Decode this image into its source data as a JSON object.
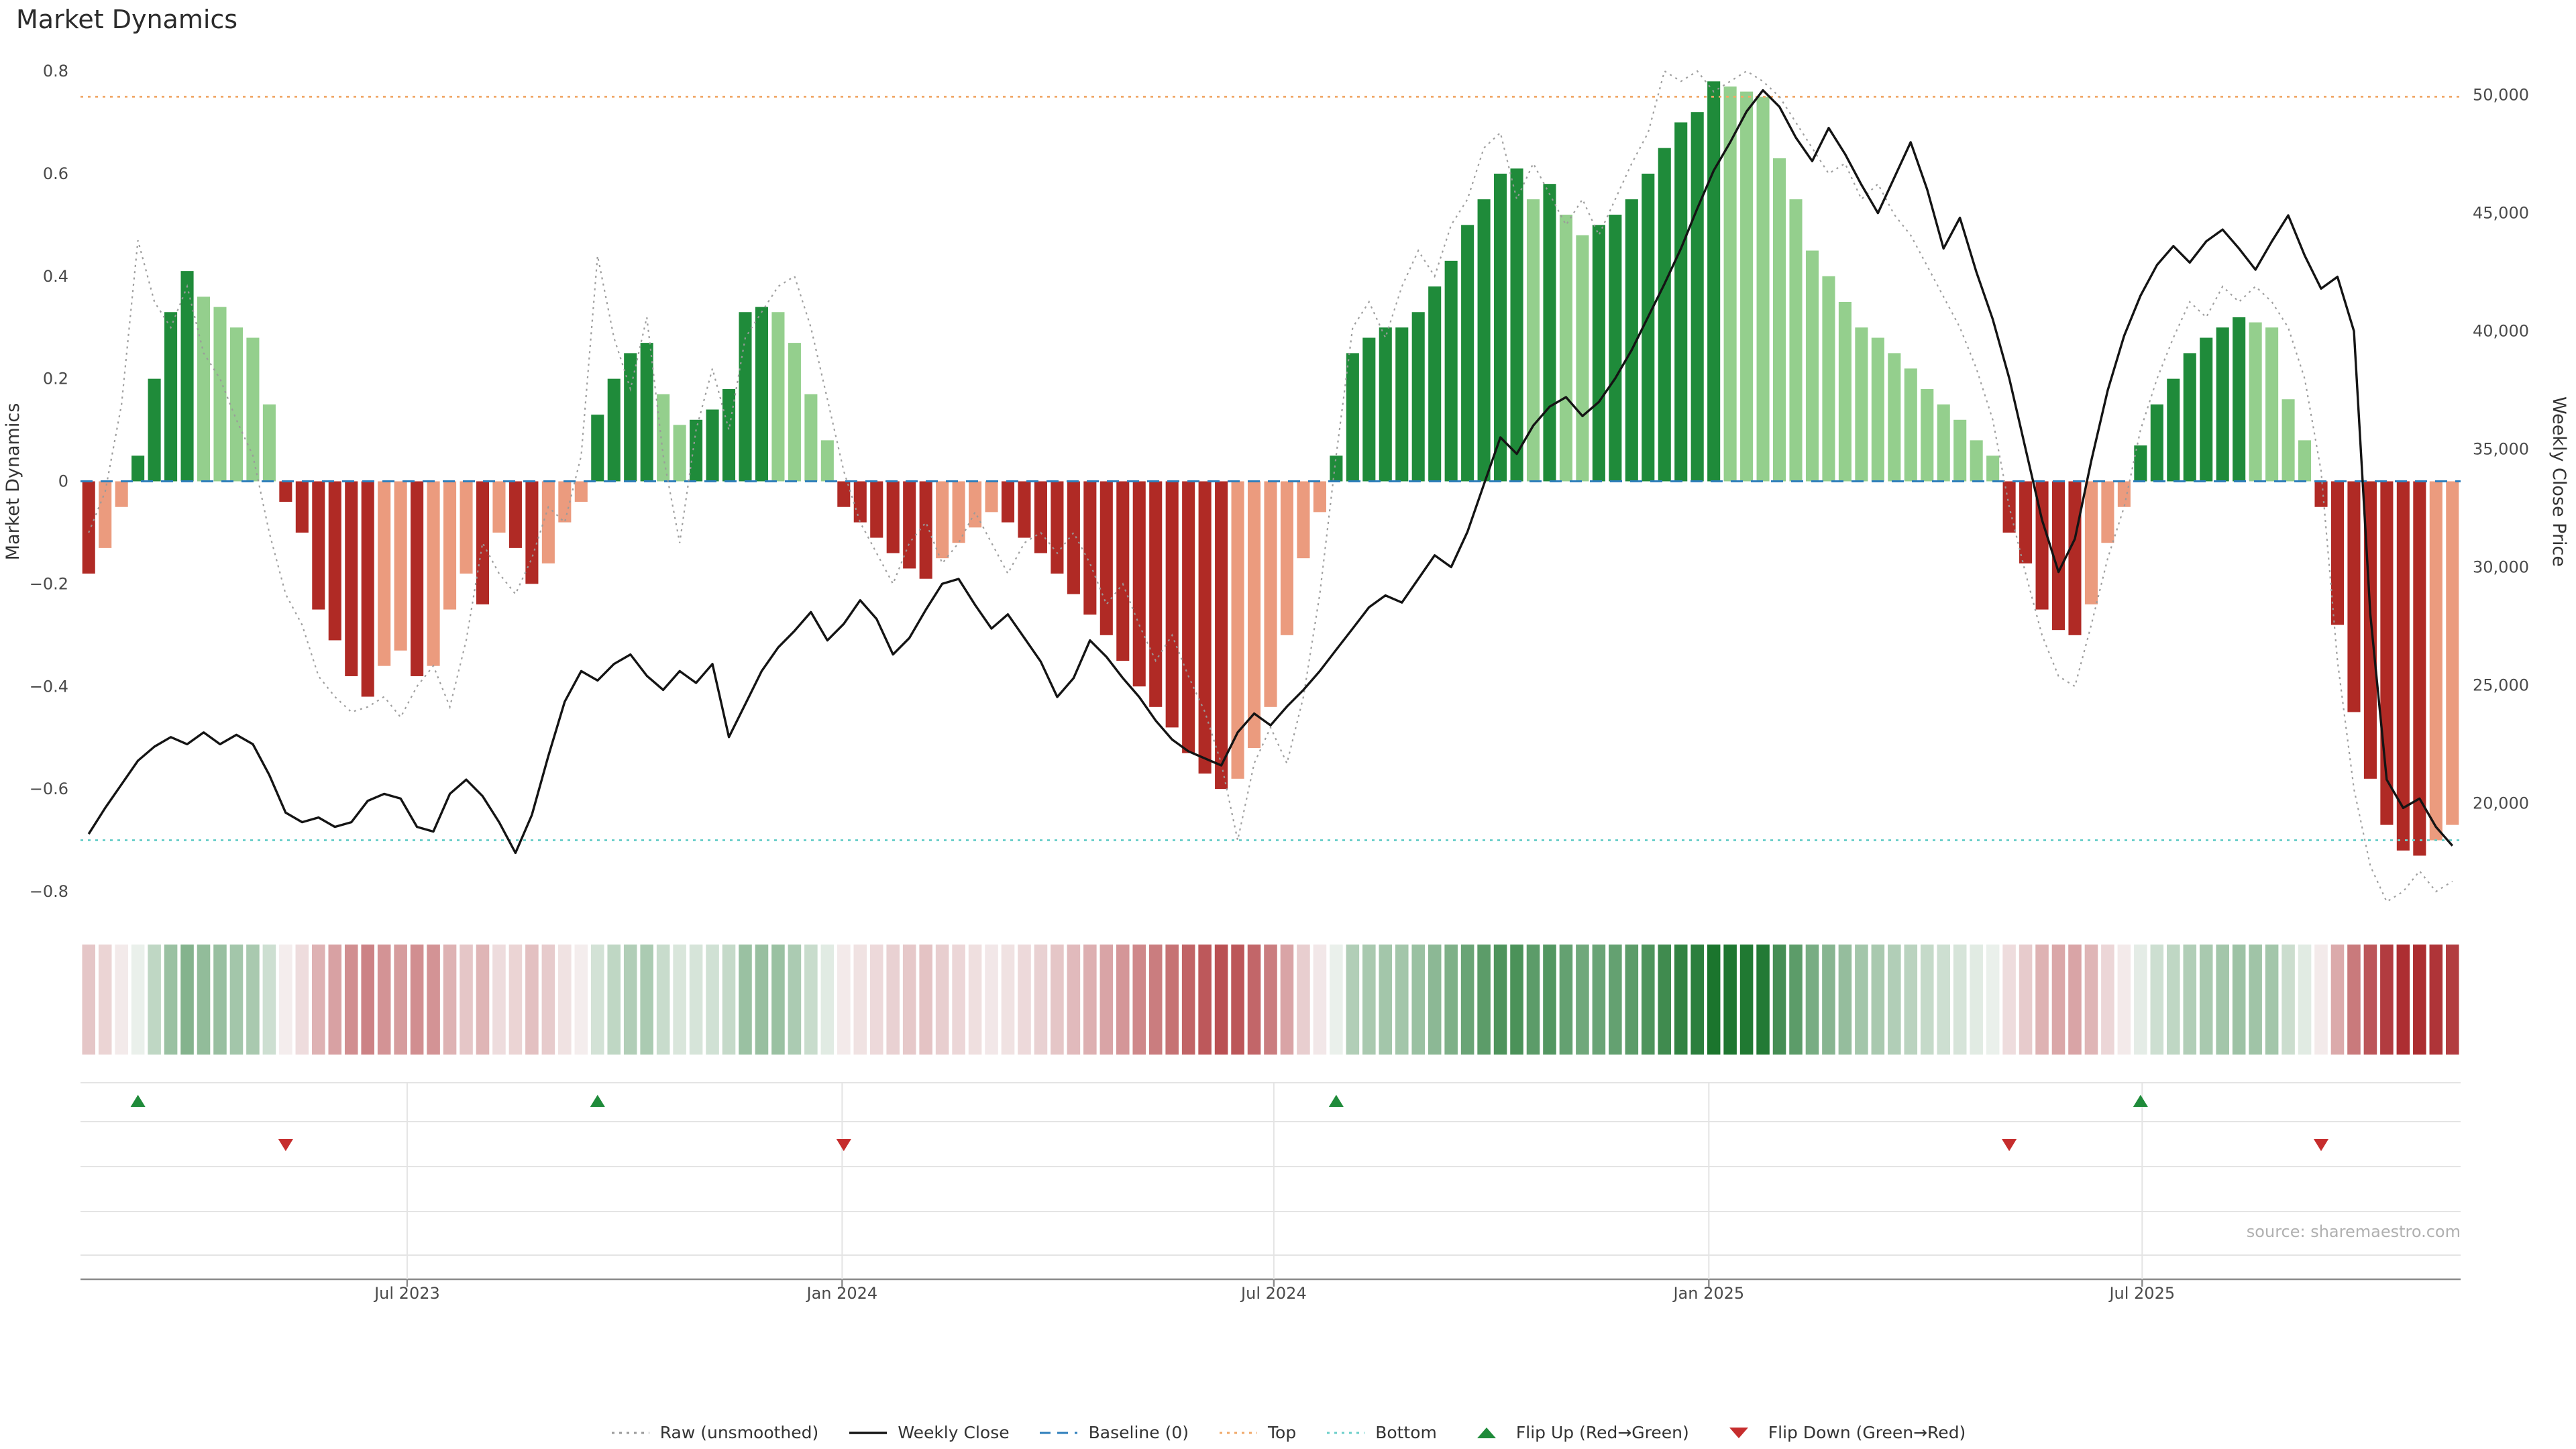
{
  "title": "Market Dynamics",
  "source": "source: sharemaestro.com",
  "chart_data": {
    "type": "combo: weekly oscillator bars + raw dotted line + price line + heatmap strip + flip markers",
    "x": {
      "unit": "week",
      "count": 145,
      "range_note": "weekly points from early 2023 to late 2025",
      "tick_labels": [
        "Jul 2023",
        "Jan 2024",
        "Jul 2024",
        "Jan 2025",
        "Jul 2025"
      ],
      "tick_weeks": [
        19.4,
        45.9,
        72.2,
        98.7,
        125.1
      ]
    },
    "axes": {
      "left_label": "Market Dynamics",
      "right_label": "Weekly Close Price",
      "left_ticks": [
        0.8,
        0.6,
        0.4,
        0.2,
        0,
        -0.2,
        -0.4,
        -0.6,
        -0.8
      ],
      "right_ticks": [
        50000,
        45000,
        40000,
        35000,
        30000,
        25000,
        20000
      ],
      "ylim_left": [
        -0.85,
        0.85
      ],
      "ylim_right": [
        17500,
        51500
      ],
      "grid": "horizontal row-lines in lower marker panel only"
    },
    "refs": {
      "baseline": 0,
      "top": 0.75,
      "bottom": -0.7
    },
    "series": {
      "dynamics": [
        -0.18,
        -0.13,
        -0.05,
        0.05,
        0.2,
        0.33,
        0.41,
        0.36,
        0.34,
        0.3,
        0.28,
        0.15,
        -0.04,
        -0.1,
        -0.25,
        -0.31,
        -0.38,
        -0.42,
        -0.36,
        -0.33,
        -0.38,
        -0.36,
        -0.25,
        -0.18,
        -0.24,
        -0.1,
        -0.13,
        -0.2,
        -0.16,
        -0.08,
        -0.04,
        0.13,
        0.2,
        0.25,
        0.27,
        0.17,
        0.11,
        0.12,
        0.14,
        0.18,
        0.33,
        0.34,
        0.33,
        0.27,
        0.17,
        0.08,
        -0.05,
        -0.08,
        -0.11,
        -0.14,
        -0.17,
        -0.19,
        -0.15,
        -0.12,
        -0.09,
        -0.06,
        -0.08,
        -0.11,
        -0.14,
        -0.18,
        -0.22,
        -0.26,
        -0.3,
        -0.35,
        -0.4,
        -0.44,
        -0.48,
        -0.53,
        -0.57,
        -0.6,
        -0.58,
        -0.52,
        -0.44,
        -0.3,
        -0.15,
        -0.06,
        0.05,
        0.25,
        0.28,
        0.3,
        0.3,
        0.33,
        0.38,
        0.43,
        0.5,
        0.55,
        0.6,
        0.61,
        0.55,
        0.58,
        0.52,
        0.48,
        0.5,
        0.52,
        0.55,
        0.6,
        0.65,
        0.7,
        0.72,
        0.78,
        0.77,
        0.76,
        0.75,
        0.63,
        0.55,
        0.45,
        0.4,
        0.35,
        0.3,
        0.28,
        0.25,
        0.22,
        0.18,
        0.15,
        0.12,
        0.08,
        0.05,
        -0.1,
        -0.16,
        -0.25,
        -0.29,
        -0.3,
        -0.24,
        -0.12,
        -0.05,
        0.07,
        0.15,
        0.2,
        0.25,
        0.28,
        0.3,
        0.32,
        0.31,
        0.3,
        0.16,
        0.08,
        -0.05,
        -0.28,
        -0.45,
        -0.58,
        -0.67,
        -0.72,
        -0.73,
        -0.7,
        -0.67
      ],
      "raw": [
        -0.1,
        -0.02,
        0.15,
        0.47,
        0.35,
        0.3,
        0.38,
        0.25,
        0.2,
        0.12,
        0.05,
        -0.1,
        -0.22,
        -0.28,
        -0.38,
        -0.42,
        -0.45,
        -0.44,
        -0.42,
        -0.46,
        -0.4,
        -0.36,
        -0.44,
        -0.31,
        -0.12,
        -0.18,
        -0.22,
        -0.15,
        -0.05,
        -0.08,
        0.05,
        0.44,
        0.28,
        0.18,
        0.32,
        0.05,
        -0.12,
        0.1,
        0.22,
        0.1,
        0.28,
        0.33,
        0.38,
        0.4,
        0.3,
        0.16,
        0.02,
        -0.08,
        -0.14,
        -0.2,
        -0.12,
        -0.08,
        -0.16,
        -0.12,
        -0.06,
        -0.12,
        -0.18,
        -0.12,
        -0.1,
        -0.14,
        -0.1,
        -0.16,
        -0.24,
        -0.2,
        -0.28,
        -0.35,
        -0.3,
        -0.38,
        -0.45,
        -0.55,
        -0.7,
        -0.55,
        -0.48,
        -0.55,
        -0.42,
        -0.22,
        0.05,
        0.3,
        0.35,
        0.28,
        0.38,
        0.45,
        0.4,
        0.5,
        0.55,
        0.65,
        0.68,
        0.55,
        0.62,
        0.56,
        0.5,
        0.55,
        0.48,
        0.55,
        0.62,
        0.68,
        0.8,
        0.78,
        0.8,
        0.76,
        0.78,
        0.8,
        0.78,
        0.75,
        0.7,
        0.65,
        0.6,
        0.62,
        0.55,
        0.58,
        0.52,
        0.48,
        0.42,
        0.36,
        0.3,
        0.22,
        0.12,
        -0.05,
        -0.18,
        -0.3,
        -0.38,
        -0.4,
        -0.28,
        -0.15,
        -0.05,
        0.1,
        0.2,
        0.28,
        0.35,
        0.32,
        0.38,
        0.35,
        0.38,
        0.35,
        0.3,
        0.2,
        0.02,
        -0.35,
        -0.6,
        -0.75,
        -0.82,
        -0.8,
        -0.76,
        -0.8,
        -0.78
      ],
      "weekly_close": [
        18700,
        19800,
        20800,
        21800,
        22400,
        22800,
        22500,
        23000,
        22500,
        22900,
        22500,
        21200,
        19600,
        19200,
        19400,
        19000,
        19200,
        20100,
        20400,
        20200,
        19000,
        18800,
        20400,
        21000,
        20300,
        19200,
        17900,
        19500,
        22000,
        24300,
        25600,
        25200,
        25900,
        26300,
        25400,
        24800,
        25600,
        25100,
        25900,
        22800,
        24200,
        25600,
        26600,
        27300,
        28100,
        26900,
        27600,
        28600,
        27800,
        26300,
        27000,
        28200,
        29300,
        29500,
        28400,
        27400,
        28000,
        27000,
        26000,
        24500,
        25300,
        26900,
        26200,
        25300,
        24500,
        23500,
        22700,
        22200,
        21900,
        21600,
        23000,
        23800,
        23300,
        24100,
        24800,
        25600,
        26500,
        27400,
        28300,
        28800,
        28500,
        29500,
        30500,
        30000,
        31500,
        33500,
        35500,
        34800,
        36000,
        36800,
        37200,
        36400,
        37000,
        38000,
        39200,
        40600,
        42000,
        43500,
        45200,
        46800,
        48000,
        49300,
        50200,
        49500,
        48200,
        47200,
        48600,
        47500,
        46200,
        45000,
        46500,
        48000,
        46000,
        43500,
        44800,
        42500,
        40500,
        38000,
        35000,
        32000,
        29800,
        31200,
        34500,
        37500,
        39800,
        41500,
        42800,
        43600,
        42900,
        43800,
        44300,
        43500,
        42600,
        43800,
        44900,
        43200,
        41800,
        42300,
        40000,
        28000,
        21000,
        19800,
        20200,
        19000,
        18200
      ]
    },
    "flips": {
      "up_weeks": [
        3,
        31,
        76,
        125
      ],
      "down_weeks": [
        12,
        46,
        117,
        136
      ]
    },
    "colors": {
      "pos_strong": "#1f8b3a",
      "pos_weak": "#94cf8d",
      "neg_strong": "#b02a25",
      "neg_weak": "#eb9b7e",
      "baseline": "#2e7ebb",
      "top": "#f0a868",
      "bottom": "#6bcfca",
      "raw": "#9a9a9a",
      "price": "#141414",
      "heat_pos": "#157228",
      "heat_neg": "#a5181c"
    },
    "legend": [
      {
        "key": "raw",
        "label": "Raw (unsmoothed)",
        "style": "dotted",
        "color": "#9a9a9a"
      },
      {
        "key": "weekly-close",
        "label": "Weekly Close",
        "style": "solid",
        "color": "#141414"
      },
      {
        "key": "baseline",
        "label": "Baseline (0)",
        "style": "dashed",
        "color": "#2e7ebb"
      },
      {
        "key": "top",
        "label": "Top",
        "style": "dotted",
        "color": "#f0a868"
      },
      {
        "key": "bottom",
        "label": "Bottom",
        "style": "dotted",
        "color": "#6bcfca"
      },
      {
        "key": "flip-up",
        "label": "Flip Up (Red→Green)",
        "style": "tri-up",
        "color": "#1f8b3a"
      },
      {
        "key": "flip-down",
        "label": "Flip Down (Green→Red)",
        "style": "tri-down",
        "color": "#c62d2d"
      }
    ]
  }
}
